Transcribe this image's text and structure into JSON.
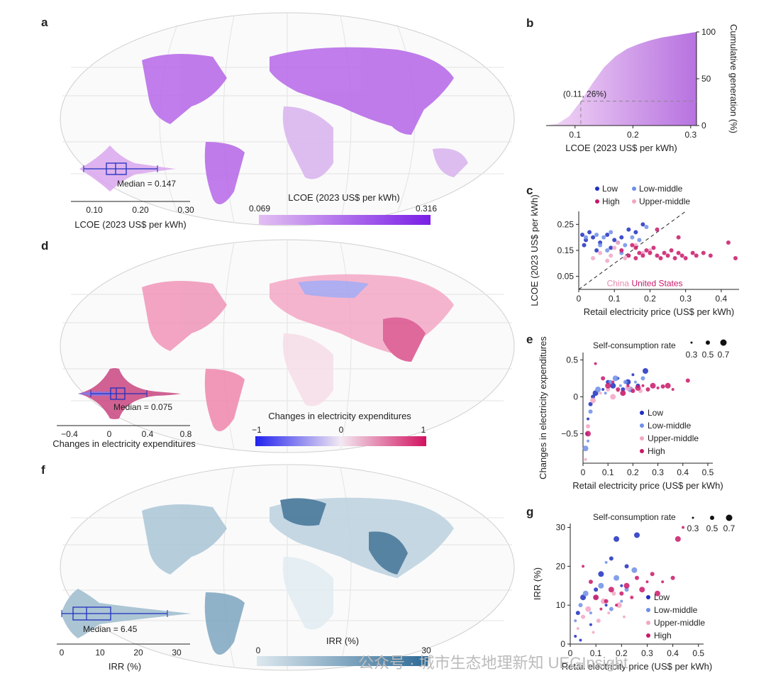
{
  "panels": {
    "a": {
      "letter": "a",
      "inset_median": "Median = 0.147",
      "inset_ticks": [
        "0.10",
        "0.20",
        "0.30"
      ],
      "inset_xlabel": "LCOE (2023 US$ per kWh)",
      "colorbar_title": "LCOE (2023 US$ per kWh)",
      "colorbar_min": "0.069",
      "colorbar_max": "0.316"
    },
    "d": {
      "letter": "d",
      "inset_median": "Median = 0.075",
      "inset_ticks": [
        "−0.4",
        "0",
        "0.4",
        "0.8"
      ],
      "inset_xlabel": "Changes in electricity expenditures",
      "colorbar_title": "Changes in electricity expenditures",
      "colorbar_min": "−1",
      "colorbar_mid": "0",
      "colorbar_max": "1"
    },
    "f": {
      "letter": "f",
      "inset_median": "Median = 6.45",
      "inset_ticks": [
        "0",
        "10",
        "20",
        "30"
      ],
      "inset_xlabel": "IRR (%)",
      "colorbar_title": "IRR (%)",
      "colorbar_min": "0",
      "colorbar_max": "30"
    },
    "b": {
      "letter": "b"
    },
    "c": {
      "letter": "c"
    },
    "e": {
      "letter": "e",
      "size_legend_title": "Self-consumption rate",
      "size_legend_values": [
        "0.3",
        "0.5",
        "0.7"
      ]
    },
    "g": {
      "letter": "g",
      "size_legend_title": "Self-consumption rate",
      "size_legend_values": [
        "0.3",
        "0.5",
        "0.7"
      ]
    }
  },
  "colors": {
    "low": "#1f2fbf",
    "low_middle": "#6f8fe8",
    "upper_middle": "#f2a6c4",
    "high": "#c8196a",
    "lcoe": "#8b2be2",
    "expend_pos": "#d81b60",
    "expend_neg": "#2f2ff0",
    "irr": "#2d6a96"
  },
  "watermark": "公众号 · 城市生态地理新知 UEGInsight",
  "chart_data": [
    {
      "type": "area",
      "panel": "b",
      "x": [
        0.05,
        0.07,
        0.09,
        0.11,
        0.13,
        0.15,
        0.17,
        0.19,
        0.21,
        0.23,
        0.25,
        0.27,
        0.29,
        0.31
      ],
      "values": [
        0,
        2,
        10,
        26,
        45,
        62,
        74,
        82,
        87,
        91,
        94,
        96,
        98,
        100
      ],
      "xlabel": "LCOE (2023 US$ per kWh)",
      "ylabel": "Cumulative generation (%)",
      "xticks": [
        "0.1",
        "0.2",
        "0.3"
      ],
      "yticks": [
        "0",
        "50",
        "100"
      ],
      "xlim": [
        0.05,
        0.31
      ],
      "ylim": [
        0,
        100
      ],
      "annotation": "(0.11, 26%)"
    },
    {
      "type": "scatter",
      "panel": "c",
      "xlabel": "Retail electricity price (US$ per kWh)",
      "ylabel": "LCOE (2023 US$ per kWh)",
      "xticks": [
        "0",
        "0.1",
        "0.2",
        "0.3",
        "0.4"
      ],
      "yticks": [
        "0.05",
        "0.15",
        "0.25"
      ],
      "xlim": [
        0,
        0.45
      ],
      "ylim": [
        0,
        0.3
      ],
      "annotations": [
        "China",
        "United States"
      ],
      "series": [
        {
          "name": "Low",
          "color": "#1f2fbf",
          "points": [
            [
              0.01,
              0.21
            ],
            [
              0.02,
              0.19
            ],
            [
              0.03,
              0.22
            ],
            [
              0.015,
              0.17
            ],
            [
              0.04,
              0.2
            ],
            [
              0.06,
              0.18
            ],
            [
              0.08,
              0.21
            ],
            [
              0.1,
              0.19
            ],
            [
              0.12,
              0.2
            ],
            [
              0.14,
              0.23
            ],
            [
              0.16,
              0.22
            ],
            [
              0.18,
              0.25
            ],
            [
              0.05,
              0.15
            ],
            [
              0.09,
              0.16
            ]
          ]
        },
        {
          "name": "Low-middle",
          "color": "#6f8fe8",
          "points": [
            [
              0.02,
              0.2
            ],
            [
              0.05,
              0.21
            ],
            [
              0.07,
              0.2
            ],
            [
              0.09,
              0.22
            ],
            [
              0.11,
              0.18
            ],
            [
              0.13,
              0.17
            ],
            [
              0.15,
              0.2
            ],
            [
              0.17,
              0.19
            ],
            [
              0.19,
              0.24
            ],
            [
              0.08,
              0.15
            ],
            [
              0.12,
              0.14
            ],
            [
              0.06,
              0.17
            ]
          ]
        },
        {
          "name": "Upper-middle",
          "color": "#f2a6c4",
          "points": [
            [
              0.04,
              0.12
            ],
            [
              0.06,
              0.14
            ],
            [
              0.08,
              0.11
            ],
            [
              0.1,
              0.16
            ],
            [
              0.12,
              0.15
            ],
            [
              0.14,
              0.13
            ],
            [
              0.16,
              0.17
            ],
            [
              0.09,
              0.13
            ],
            [
              0.11,
              0.18
            ],
            [
              0.13,
              0.12
            ],
            [
              0.18,
              0.14
            ],
            [
              0.2,
              0.15
            ]
          ]
        },
        {
          "name": "High",
          "color": "#c8196a",
          "points": [
            [
              0.12,
              0.15
            ],
            [
              0.14,
              0.13
            ],
            [
              0.15,
              0.17
            ],
            [
              0.16,
              0.16
            ],
            [
              0.17,
              0.14
            ],
            [
              0.18,
              0.13
            ],
            [
              0.19,
              0.15
            ],
            [
              0.2,
              0.14
            ],
            [
              0.21,
              0.16
            ],
            [
              0.22,
              0.13
            ],
            [
              0.23,
              0.12
            ],
            [
              0.24,
              0.14
            ],
            [
              0.25,
              0.13
            ],
            [
              0.26,
              0.15
            ],
            [
              0.27,
              0.12
            ],
            [
              0.28,
              0.14
            ],
            [
              0.29,
              0.13
            ],
            [
              0.3,
              0.12
            ],
            [
              0.32,
              0.14
            ],
            [
              0.33,
              0.13
            ],
            [
              0.35,
              0.14
            ],
            [
              0.37,
              0.13
            ],
            [
              0.42,
              0.18
            ],
            [
              0.44,
              0.12
            ],
            [
              0.16,
              0.12
            ],
            [
              0.22,
              0.23
            ],
            [
              0.28,
              0.2
            ]
          ]
        }
      ]
    },
    {
      "type": "scatter",
      "panel": "e",
      "xlabel": "Retail electricity price (US$ per kWh)",
      "ylabel": "Changes in electricity expenditures",
      "xticks": [
        "0",
        "0.1",
        "0.2",
        "0.3",
        "0.4",
        "0.5"
      ],
      "yticks": [
        "−0.5",
        "0",
        "0.5"
      ],
      "xlim": [
        0,
        0.52
      ],
      "ylim": [
        -0.9,
        0.6
      ],
      "series": [
        {
          "name": "Low",
          "color": "#1f2fbf",
          "points": [
            [
              0.02,
              -0.3
            ],
            [
              0.03,
              -0.1
            ],
            [
              0.05,
              0.05
            ],
            [
              0.08,
              0.1
            ],
            [
              0.1,
              0.2
            ],
            [
              0.12,
              0.15
            ],
            [
              0.14,
              0.25
            ],
            [
              0.16,
              0.1
            ],
            [
              0.18,
              0.2
            ],
            [
              0.2,
              0.3
            ],
            [
              0.22,
              0.15
            ],
            [
              0.25,
              0.35
            ],
            [
              0.015,
              -0.5
            ],
            [
              0.04,
              0.0
            ]
          ]
        },
        {
          "name": "Low-middle",
          "color": "#6f8fe8",
          "points": [
            [
              0.02,
              -0.6
            ],
            [
              0.03,
              -0.2
            ],
            [
              0.06,
              0.1
            ],
            [
              0.09,
              0.05
            ],
            [
              0.11,
              0.2
            ],
            [
              0.13,
              0.25
            ],
            [
              0.15,
              0.15
            ],
            [
              0.17,
              0.2
            ],
            [
              0.19,
              0.1
            ],
            [
              0.21,
              0.2
            ],
            [
              0.24,
              0.25
            ],
            [
              0.01,
              -0.7
            ]
          ]
        },
        {
          "name": "Upper-middle",
          "color": "#f2a6c4",
          "points": [
            [
              0.01,
              -0.85
            ],
            [
              0.02,
              -0.4
            ],
            [
              0.04,
              -0.05
            ],
            [
              0.07,
              0.05
            ],
            [
              0.1,
              0.1
            ],
            [
              0.12,
              0.0
            ],
            [
              0.14,
              0.08
            ],
            [
              0.16,
              0.05
            ],
            [
              0.18,
              0.12
            ],
            [
              0.2,
              0.1
            ],
            [
              0.23,
              0.08
            ]
          ]
        },
        {
          "name": "High",
          "color": "#c8196a",
          "points": [
            [
              0.05,
              0.45
            ],
            [
              0.08,
              0.25
            ],
            [
              0.1,
              0.15
            ],
            [
              0.12,
              0.2
            ],
            [
              0.14,
              0.1
            ],
            [
              0.16,
              0.05
            ],
            [
              0.18,
              0.15
            ],
            [
              0.2,
              0.08
            ],
            [
              0.22,
              0.12
            ],
            [
              0.24,
              0.15
            ],
            [
              0.26,
              0.1
            ],
            [
              0.28,
              0.15
            ],
            [
              0.3,
              0.12
            ],
            [
              0.32,
              0.14
            ],
            [
              0.34,
              0.15
            ],
            [
              0.36,
              0.1
            ],
            [
              0.42,
              0.22
            ],
            [
              0.02,
              -0.5
            ]
          ]
        }
      ]
    },
    {
      "type": "scatter",
      "panel": "g",
      "xlabel": "Retail electricity price (US$ per kWh)",
      "ylabel": "IRR (%)",
      "xticks": [
        "0",
        "0.1",
        "0.2",
        "0.3",
        "0.4",
        "0.5"
      ],
      "yticks": [
        "0",
        "10",
        "20",
        "30"
      ],
      "xlim": [
        0,
        0.52
      ],
      "ylim": [
        0,
        31
      ],
      "series": [
        {
          "name": "Low",
          "color": "#1f2fbf",
          "points": [
            [
              0.02,
              2
            ],
            [
              0.03,
              8
            ],
            [
              0.05,
              12
            ],
            [
              0.08,
              5
            ],
            [
              0.1,
              14
            ],
            [
              0.12,
              18
            ],
            [
              0.14,
              10
            ],
            [
              0.16,
              22
            ],
            [
              0.18,
              27
            ],
            [
              0.2,
              15
            ],
            [
              0.22,
              20
            ],
            [
              0.26,
              28
            ],
            [
              0.04,
              1
            ]
          ]
        },
        {
          "name": "Low-middle",
          "color": "#6f8fe8",
          "points": [
            [
              0.02,
              6
            ],
            [
              0.04,
              10
            ],
            [
              0.06,
              13
            ],
            [
              0.08,
              8
            ],
            [
              0.1,
              12
            ],
            [
              0.12,
              15
            ],
            [
              0.14,
              21
            ],
            [
              0.16,
              9
            ],
            [
              0.18,
              17
            ],
            [
              0.2,
              11
            ],
            [
              0.22,
              14
            ],
            [
              0.25,
              19
            ]
          ]
        },
        {
          "name": "Upper-middle",
          "color": "#f2a6c4",
          "points": [
            [
              0.03,
              4
            ],
            [
              0.05,
              7
            ],
            [
              0.07,
              9
            ],
            [
              0.09,
              3
            ],
            [
              0.11,
              6
            ],
            [
              0.13,
              11
            ],
            [
              0.15,
              8
            ],
            [
              0.17,
              13
            ],
            [
              0.19,
              10
            ],
            [
              0.21,
              7
            ],
            [
              0.24,
              12
            ]
          ]
        },
        {
          "name": "High",
          "color": "#c8196a",
          "points": [
            [
              0.05,
              20
            ],
            [
              0.08,
              16
            ],
            [
              0.1,
              12
            ],
            [
              0.12,
              9
            ],
            [
              0.14,
              11
            ],
            [
              0.16,
              14
            ],
            [
              0.18,
              10
            ],
            [
              0.2,
              13
            ],
            [
              0.22,
              15
            ],
            [
              0.24,
              12
            ],
            [
              0.26,
              17
            ],
            [
              0.28,
              14
            ],
            [
              0.3,
              16
            ],
            [
              0.32,
              18
            ],
            [
              0.34,
              13
            ],
            [
              0.36,
              16
            ],
            [
              0.4,
              17
            ],
            [
              0.42,
              27
            ],
            [
              0.44,
              30
            ]
          ]
        }
      ]
    }
  ]
}
